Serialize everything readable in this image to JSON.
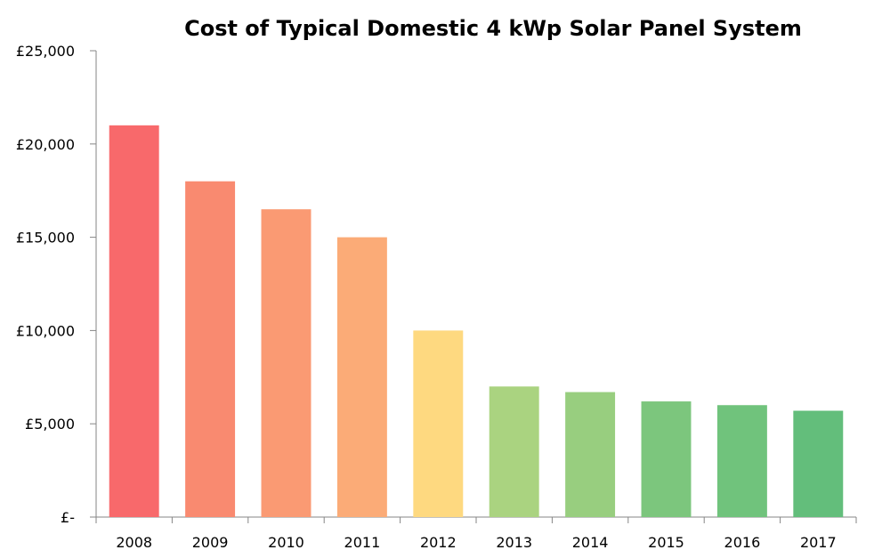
{
  "chart_data": {
    "type": "bar",
    "title": "Cost of Typical Domestic 4 kWp Solar Panel System",
    "xlabel": "",
    "ylabel": "",
    "categories": [
      "2008",
      "2009",
      "2010",
      "2011",
      "2012",
      "2013",
      "2014",
      "2015",
      "2016",
      "2017"
    ],
    "values": [
      21000,
      18000,
      16500,
      15000,
      10000,
      7000,
      6700,
      6200,
      6000,
      5700
    ],
    "colors": [
      "#f8696b",
      "#f98a70",
      "#fa9a73",
      "#fbab77",
      "#fed980",
      "#aad380",
      "#98ce7f",
      "#7cc67d",
      "#70c37c",
      "#63be7b"
    ],
    "ylim": [
      0,
      25000
    ],
    "yticks": [
      0,
      5000,
      10000,
      15000,
      20000,
      25000
    ],
    "ytick_labels": [
      "£-",
      "£5,000",
      "£10,000",
      "£15,000",
      "£20,000",
      "£25,000"
    ],
    "grid": false,
    "legend": "none"
  }
}
